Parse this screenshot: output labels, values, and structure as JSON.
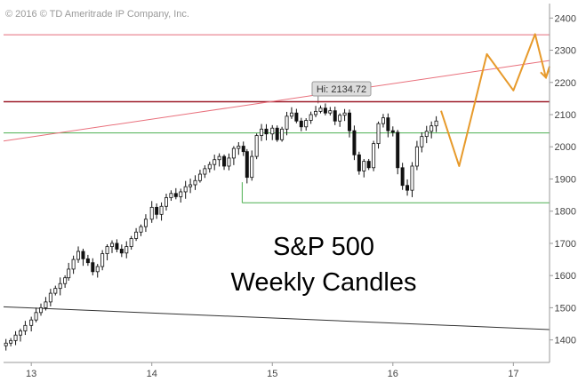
{
  "chart_data": {
    "type": "candlestick",
    "copyright": "© 2016 © TD Ameritrade IP Company, Inc.",
    "title_line1": "S&P 500",
    "title_line2": "Weekly Candles",
    "x_tick_labels": [
      "13",
      "14",
      "15",
      "16",
      "17"
    ],
    "x_ticks": [
      2013,
      2014,
      2015,
      2016,
      2017
    ],
    "x_range": [
      2012.77,
      2017.3
    ],
    "y_tick_labels": [
      "2400",
      "2300",
      "2200",
      "2100",
      "2000",
      "1900",
      "1800",
      "1700",
      "1600",
      "1500",
      "1400"
    ],
    "y_ticks": [
      2400,
      2300,
      2200,
      2100,
      2000,
      1900,
      1800,
      1700,
      1600,
      1500,
      1400
    ],
    "y_range": [
      1330,
      2445
    ],
    "high_annotation": "Hi: 2134.72",
    "high_point": {
      "x": 2015.38,
      "y": 2134.72
    },
    "weekly_closes": [
      [
        2012.79,
        1390
      ],
      [
        2012.83,
        1398
      ],
      [
        2012.87,
        1415
      ],
      [
        2012.91,
        1428
      ],
      [
        2012.95,
        1445
      ],
      [
        2013.0,
        1462
      ],
      [
        2013.04,
        1485
      ],
      [
        2013.08,
        1500
      ],
      [
        2013.12,
        1518
      ],
      [
        2013.16,
        1545
      ],
      [
        2013.2,
        1560
      ],
      [
        2013.24,
        1575
      ],
      [
        2013.28,
        1593
      ],
      [
        2013.31,
        1620
      ],
      [
        2013.35,
        1650
      ],
      [
        2013.39,
        1675
      ],
      [
        2013.43,
        1652
      ],
      [
        2013.47,
        1640
      ],
      [
        2013.51,
        1612
      ],
      [
        2013.55,
        1628
      ],
      [
        2013.59,
        1668
      ],
      [
        2013.63,
        1690
      ],
      [
        2013.67,
        1700
      ],
      [
        2013.71,
        1682
      ],
      [
        2013.75,
        1670
      ],
      [
        2013.79,
        1690
      ],
      [
        2013.83,
        1715
      ],
      [
        2013.87,
        1735
      ],
      [
        2013.91,
        1752
      ],
      [
        2013.95,
        1775
      ],
      [
        2014.0,
        1812
      ],
      [
        2014.04,
        1790
      ],
      [
        2014.08,
        1815
      ],
      [
        2014.12,
        1842
      ],
      [
        2014.16,
        1855
      ],
      [
        2014.2,
        1845
      ],
      [
        2014.24,
        1860
      ],
      [
        2014.28,
        1876
      ],
      [
        2014.32,
        1882
      ],
      [
        2014.36,
        1895
      ],
      [
        2014.4,
        1915
      ],
      [
        2014.44,
        1932
      ],
      [
        2014.48,
        1945
      ],
      [
        2014.52,
        1960
      ],
      [
        2014.56,
        1970
      ],
      [
        2014.6,
        1940
      ],
      [
        2014.64,
        1965
      ],
      [
        2014.68,
        1995
      ],
      [
        2014.72,
        2002
      ],
      [
        2014.76,
        1985
      ],
      [
        2014.79,
        1905
      ],
      [
        2014.83,
        1970
      ],
      [
        2014.87,
        2035
      ],
      [
        2014.91,
        2055
      ],
      [
        2014.95,
        2040
      ],
      [
        2015.0,
        2058
      ],
      [
        2015.04,
        2022
      ],
      [
        2015.08,
        2055
      ],
      [
        2015.12,
        2095
      ],
      [
        2015.16,
        2105
      ],
      [
        2015.2,
        2080
      ],
      [
        2015.24,
        2062
      ],
      [
        2015.28,
        2082
      ],
      [
        2015.32,
        2100
      ],
      [
        2015.36,
        2110
      ],
      [
        2015.4,
        2120
      ],
      [
        2015.44,
        2105
      ],
      [
        2015.48,
        2112
      ],
      [
        2015.52,
        2080
      ],
      [
        2015.56,
        2098
      ],
      [
        2015.6,
        2105
      ],
      [
        2015.64,
        2050
      ],
      [
        2015.68,
        1975
      ],
      [
        2015.72,
        1925
      ],
      [
        2015.76,
        1955
      ],
      [
        2015.8,
        1935
      ],
      [
        2015.84,
        2010
      ],
      [
        2015.88,
        2072
      ],
      [
        2015.92,
        2090
      ],
      [
        2015.96,
        2050
      ],
      [
        2016.0,
        2045
      ],
      [
        2016.04,
        1935
      ],
      [
        2016.08,
        1880
      ],
      [
        2016.12,
        1865
      ],
      [
        2016.16,
        1940
      ],
      [
        2016.2,
        2000
      ],
      [
        2016.24,
        2032
      ],
      [
        2016.28,
        2048
      ],
      [
        2016.32,
        2065
      ],
      [
        2016.36,
        2080
      ]
    ],
    "support_box_line": {
      "x_start": 2014.75,
      "x_end": 2017.3,
      "y": 1826
    },
    "horizontal_lines": [
      {
        "color": "#e46b7a",
        "y": 2348
      },
      {
        "color": "#9e1c2a",
        "y": 2140
      },
      {
        "color": "#4caf50",
        "y": 2043
      },
      {
        "color": "#4caf50",
        "y": 1826
      }
    ],
    "trendlines": [
      {
        "color": "#e9707c",
        "x1": 2012.77,
        "y1": 2018,
        "x2": 2017.3,
        "y2": 2268
      },
      {
        "color": "#333333",
        "x1": 2012.77,
        "y1": 1503,
        "x2": 2017.3,
        "y2": 1432
      }
    ],
    "projection": {
      "color": "#e79a2b",
      "points": [
        [
          2016.4,
          2112
        ],
        [
          2016.55,
          1940
        ],
        [
          2016.78,
          2288
        ],
        [
          2017.0,
          2175
        ],
        [
          2017.18,
          2350
        ],
        [
          2017.27,
          2215
        ],
        [
          2017.3,
          2250
        ]
      ]
    }
  }
}
